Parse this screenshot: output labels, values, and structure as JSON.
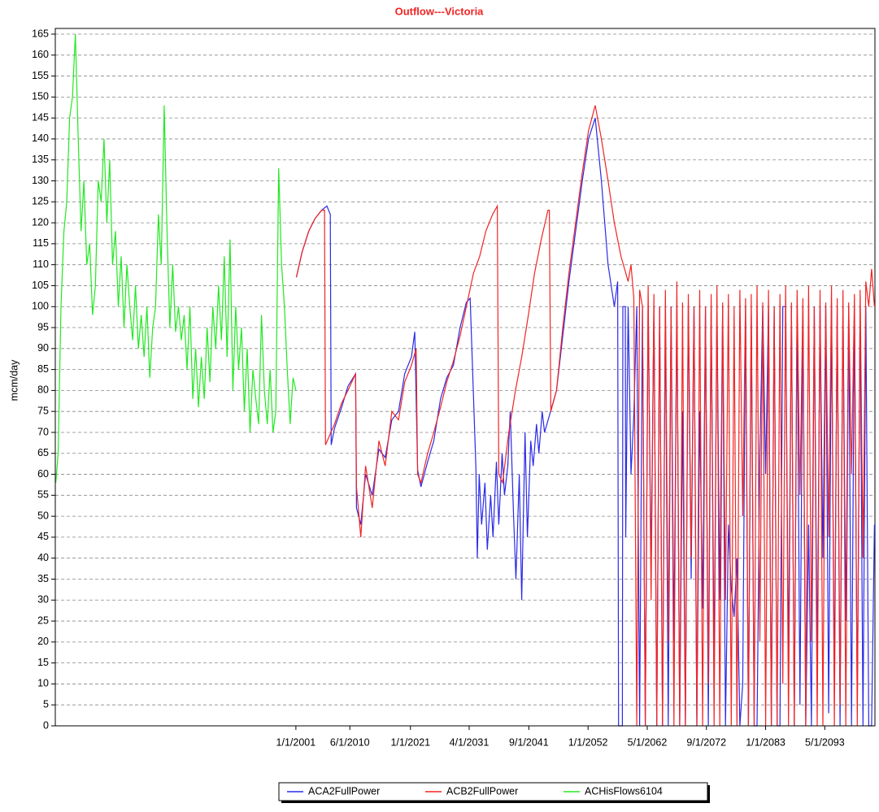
{
  "chart_data": {
    "type": "line",
    "title": "Outflow---Victoria",
    "y_label": "mcm/day",
    "grid": true,
    "legend": "bottom",
    "xlim": [
      "1959-01",
      "2102-02"
    ],
    "xticks": [
      {
        "value": "2001-01",
        "label": "1/1/2001"
      },
      {
        "value": "2010-06",
        "label": "6/1/2010"
      },
      {
        "value": "2021-01",
        "label": "1/1/2021"
      },
      {
        "value": "2031-04",
        "label": "4/1/2031"
      },
      {
        "value": "2041-09",
        "label": "9/1/2041"
      },
      {
        "value": "2052-01",
        "label": "1/1/2052"
      },
      {
        "value": "2062-05",
        "label": "5/1/2062"
      },
      {
        "value": "2072-09",
        "label": "9/1/2072"
      },
      {
        "value": "2083-01",
        "label": "1/1/2083"
      },
      {
        "value": "2093-05",
        "label": "5/1/2093"
      }
    ],
    "ylim": [
      0,
      165
    ],
    "yticks": [
      0,
      5,
      10,
      15,
      20,
      25,
      30,
      35,
      40,
      45,
      50,
      55,
      60,
      65,
      70,
      75,
      80,
      85,
      90,
      95,
      100,
      105,
      110,
      115,
      120,
      125,
      130,
      135,
      140,
      145,
      150,
      155,
      160,
      165
    ],
    "series": [
      {
        "name": "ACA2FullPower",
        "color": "#2a2ae8",
        "x": [
          "2001-02",
          "2002-02",
          "2003-04",
          "2004-05",
          "2005-07",
          "2006-06",
          "2007-01",
          "2007-03",
          "2007-10",
          "2009-01",
          "2010-02",
          "2011-06",
          "2011-08",
          "2012-05",
          "2013-03",
          "2014-05",
          "2015-07",
          "2016-08",
          "2017-10",
          "2018-12",
          "2020-01",
          "2021-03",
          "2021-10",
          "2022-04",
          "2022-11",
          "2024-01",
          "2025-02",
          "2026-04",
          "2027-05",
          "2028-07",
          "2029-09",
          "2030-10",
          "2031-06",
          "2032-06",
          "2032-09",
          "2033-01",
          "2033-06",
          "2034-01",
          "2034-06",
          "2035-01",
          "2035-06",
          "2036-01",
          "2036-06",
          "2037-01",
          "2037-06",
          "2038-01",
          "2038-06",
          "2039-01",
          "2039-06",
          "2040-01",
          "2040-06",
          "2041-01",
          "2041-06",
          "2042-01",
          "2042-06",
          "2043-01",
          "2043-06",
          "2044-01",
          "2044-06",
          "2046-07",
          "2047-08",
          "2048-09",
          "2049-11",
          "2051-01",
          "2052-02",
          "2053-04",
          "2054-05",
          "2055-07",
          "2056-08",
          "2057-03",
          "2057-05",
          "2058-01",
          "2058-02",
          "2058-07",
          "2058-08",
          "2059-01",
          "2059-07",
          "2060-01",
          "2060-07",
          "2061-01",
          "2061-07",
          "2062-01",
          "2062-07",
          "2063-01",
          "2063-07",
          "2064-01",
          "2064-07",
          "2065-01",
          "2065-07",
          "2066-01",
          "2066-07",
          "2067-01",
          "2067-07",
          "2068-01",
          "2068-07",
          "2069-01",
          "2069-07",
          "2070-01",
          "2070-07",
          "2071-01",
          "2071-07",
          "2072-01",
          "2072-07",
          "2073-01",
          "2073-07",
          "2074-01",
          "2074-07",
          "2075-01",
          "2075-07",
          "2076-01",
          "2076-07",
          "2077-01",
          "2077-07",
          "2078-01",
          "2078-07",
          "2079-01",
          "2079-07",
          "2080-01",
          "2080-07",
          "2081-01",
          "2081-07",
          "2082-01",
          "2082-07",
          "2083-01",
          "2083-07",
          "2084-01",
          "2084-07",
          "2085-01",
          "2085-07",
          "2086-01",
          "2086-07",
          "2087-01",
          "2087-07",
          "2088-01",
          "2088-07",
          "2089-01",
          "2089-07",
          "2090-01",
          "2090-07",
          "2091-01",
          "2091-07",
          "2092-01",
          "2092-07",
          "2093-01",
          "2093-07",
          "2094-01",
          "2094-07",
          "2095-01",
          "2095-07",
          "2096-01",
          "2096-07",
          "2097-01",
          "2097-07",
          "2098-01",
          "2098-07",
          "2099-01",
          "2099-07",
          "2100-01",
          "2100-07",
          "2101-01",
          "2101-07",
          "2102-01"
        ],
        "values": [
          107,
          113,
          118,
          121,
          123,
          124,
          122,
          67,
          71,
          76,
          81,
          84,
          52,
          48,
          60,
          55,
          66,
          64,
          73,
          75,
          84,
          88,
          94,
          61,
          57,
          63,
          68,
          78,
          83,
          86,
          95,
          101,
          102,
          62,
          40,
          60,
          48,
          58,
          42,
          55,
          45,
          63,
          48,
          65,
          55,
          62,
          75,
          50,
          35,
          60,
          30,
          70,
          45,
          68,
          62,
          72,
          65,
          75,
          70,
          80,
          93,
          106,
          118,
          130,
          140,
          145,
          130,
          110,
          100,
          106,
          0,
          0,
          100,
          100,
          45,
          100,
          60,
          74,
          100,
          0,
          100,
          0,
          100,
          38,
          100,
          0,
          100,
          0,
          100,
          0,
          100,
          20,
          100,
          0,
          75,
          0,
          100,
          35,
          100,
          0,
          75,
          28,
          100,
          0,
          100,
          15,
          100,
          30,
          100,
          0,
          48,
          33,
          26,
          40,
          0,
          10,
          100,
          0,
          98,
          0,
          0,
          65,
          100,
          60,
          100,
          0,
          100,
          0,
          0,
          100,
          100,
          15,
          100,
          0,
          100,
          5,
          100,
          0,
          48,
          0,
          100,
          15,
          100,
          40,
          100,
          3,
          100,
          10,
          100,
          0,
          100,
          25,
          100,
          0,
          100,
          5,
          100,
          0,
          100,
          0,
          0,
          48
        ]
      },
      {
        "name": "ACB2FullPower",
        "color": "#f22424",
        "x": [
          "2001-02",
          "2002-02",
          "2003-04",
          "2004-05",
          "2005-07",
          "2006-01",
          "2006-03",
          "2007-10",
          "2009-01",
          "2010-02",
          "2011-06",
          "2011-08",
          "2012-05",
          "2013-03",
          "2014-05",
          "2015-07",
          "2016-08",
          "2017-10",
          "2018-12",
          "2020-01",
          "2021-03",
          "2022-01",
          "2022-04",
          "2022-11",
          "2024-01",
          "2025-02",
          "2026-04",
          "2027-05",
          "2028-07",
          "2029-09",
          "2030-10",
          "2032-01",
          "2033-02",
          "2034-03",
          "2035-05",
          "2036-03",
          "2036-06",
          "2037-02",
          "2038-03",
          "2039-05",
          "2040-06",
          "2041-08",
          "2042-09",
          "2043-11",
          "2045-01",
          "2045-04",
          "2045-07",
          "2046-07",
          "2047-08",
          "2048-09",
          "2049-11",
          "2051-01",
          "2052-02",
          "2053-04",
          "2054-05",
          "2055-07",
          "2056-08",
          "2057-10",
          "2059-01",
          "2059-07",
          "2060-01",
          "2060-07",
          "2061-01",
          "2061-07",
          "2062-01",
          "2062-07",
          "2063-01",
          "2063-07",
          "2064-01",
          "2064-07",
          "2065-01",
          "2065-07",
          "2066-01",
          "2066-07",
          "2067-01",
          "2067-07",
          "2068-01",
          "2068-07",
          "2069-01",
          "2069-07",
          "2070-01",
          "2070-07",
          "2071-01",
          "2071-07",
          "2072-01",
          "2072-07",
          "2073-01",
          "2073-07",
          "2074-01",
          "2074-07",
          "2075-01",
          "2075-07",
          "2076-01",
          "2076-07",
          "2077-01",
          "2077-07",
          "2078-01",
          "2078-07",
          "2079-01",
          "2079-07",
          "2080-01",
          "2080-07",
          "2081-01",
          "2081-07",
          "2082-01",
          "2082-07",
          "2083-01",
          "2083-07",
          "2084-01",
          "2084-07",
          "2085-01",
          "2085-07",
          "2086-01",
          "2086-07",
          "2087-01",
          "2087-07",
          "2088-01",
          "2088-07",
          "2089-01",
          "2089-07",
          "2090-01",
          "2090-07",
          "2091-01",
          "2091-07",
          "2092-01",
          "2092-07",
          "2093-01",
          "2093-07",
          "2094-01",
          "2094-07",
          "2095-01",
          "2095-07",
          "2096-01",
          "2096-07",
          "2097-01",
          "2097-07",
          "2098-01",
          "2098-07",
          "2099-01",
          "2099-07",
          "2100-01",
          "2100-07",
          "2101-01",
          "2101-07",
          "2102-01"
        ],
        "values": [
          107,
          113,
          118,
          121,
          123,
          123,
          67,
          72,
          77,
          80,
          84,
          57,
          45,
          62,
          52,
          68,
          62,
          75,
          73,
          82,
          86,
          90,
          60,
          58,
          65,
          70,
          76,
          82,
          87,
          93,
          100,
          108,
          112,
          118,
          122,
          124,
          60,
          58,
          70,
          80,
          88,
          98,
          108,
          116,
          123,
          123,
          75,
          80,
          95,
          108,
          120,
          132,
          142,
          148,
          140,
          130,
          120,
          112,
          106,
          110,
          102,
          0,
          104,
          100,
          0,
          105,
          30,
          103,
          0,
          100,
          0,
          104,
          20,
          100,
          0,
          106,
          0,
          101,
          0,
          103,
          40,
          100,
          0,
          104,
          0,
          100,
          10,
          103,
          0,
          105,
          0,
          101,
          30,
          103,
          0,
          100,
          0,
          104,
          50,
          102,
          0,
          103,
          0,
          105,
          20,
          101,
          0,
          104,
          0,
          100,
          0,
          103,
          10,
          105,
          0,
          101,
          0,
          104,
          55,
          102,
          0,
          105,
          20,
          100,
          0,
          104,
          0,
          101,
          45,
          105,
          0,
          102,
          5,
          104,
          0,
          101,
          60,
          103,
          0,
          104,
          40,
          106,
          100,
          109,
          100
        ]
      },
      {
        "name": "ACHisFlows6104",
        "color": "#22e822",
        "x": [
          "1959-02",
          "1959-07",
          "1960-01",
          "1960-07",
          "1961-01",
          "1961-07",
          "1962-01",
          "1962-07",
          "1963-01",
          "1963-07",
          "1964-01",
          "1964-07",
          "1965-01",
          "1965-07",
          "1966-01",
          "1966-07",
          "1967-01",
          "1967-07",
          "1968-01",
          "1968-07",
          "1969-01",
          "1969-07",
          "1970-01",
          "1970-07",
          "1971-01",
          "1971-07",
          "1972-01",
          "1972-07",
          "1973-01",
          "1973-07",
          "1974-01",
          "1974-07",
          "1975-01",
          "1975-07",
          "1976-01",
          "1976-07",
          "1977-01",
          "1977-07",
          "1978-01",
          "1978-07",
          "1979-01",
          "1979-07",
          "1980-01",
          "1980-07",
          "1981-01",
          "1981-07",
          "1982-01",
          "1982-07",
          "1983-01",
          "1983-07",
          "1984-01",
          "1984-07",
          "1985-01",
          "1985-07",
          "1986-01",
          "1986-07",
          "1987-01",
          "1987-07",
          "1988-01",
          "1988-07",
          "1989-01",
          "1989-07",
          "1990-01",
          "1990-07",
          "1991-01",
          "1991-07",
          "1992-01",
          "1992-07",
          "1993-01",
          "1993-07",
          "1994-01",
          "1994-07",
          "1995-01",
          "1995-07",
          "1996-01",
          "1996-07",
          "1997-01",
          "1997-07",
          "1998-01",
          "1998-07",
          "1999-01",
          "1999-07",
          "2000-01",
          "2000-07",
          "2001-01"
        ],
        "values": [
          58,
          65,
          100,
          118,
          125,
          145,
          150,
          165,
          140,
          118,
          130,
          110,
          115,
          98,
          105,
          130,
          125,
          140,
          120,
          135,
          110,
          118,
          100,
          112,
          95,
          110,
          100,
          92,
          105,
          90,
          98,
          88,
          100,
          83,
          95,
          100,
          122,
          110,
          148,
          118,
          95,
          110,
          94,
          100,
          92,
          98,
          85,
          100,
          78,
          90,
          76,
          88,
          78,
          95,
          82,
          100,
          90,
          105,
          92,
          112,
          88,
          116,
          80,
          100,
          85,
          95,
          75,
          90,
          70,
          85,
          78,
          72,
          98,
          80,
          72,
          85,
          70,
          75,
          133,
          110,
          100,
          85,
          72,
          83,
          80
        ]
      }
    ]
  }
}
